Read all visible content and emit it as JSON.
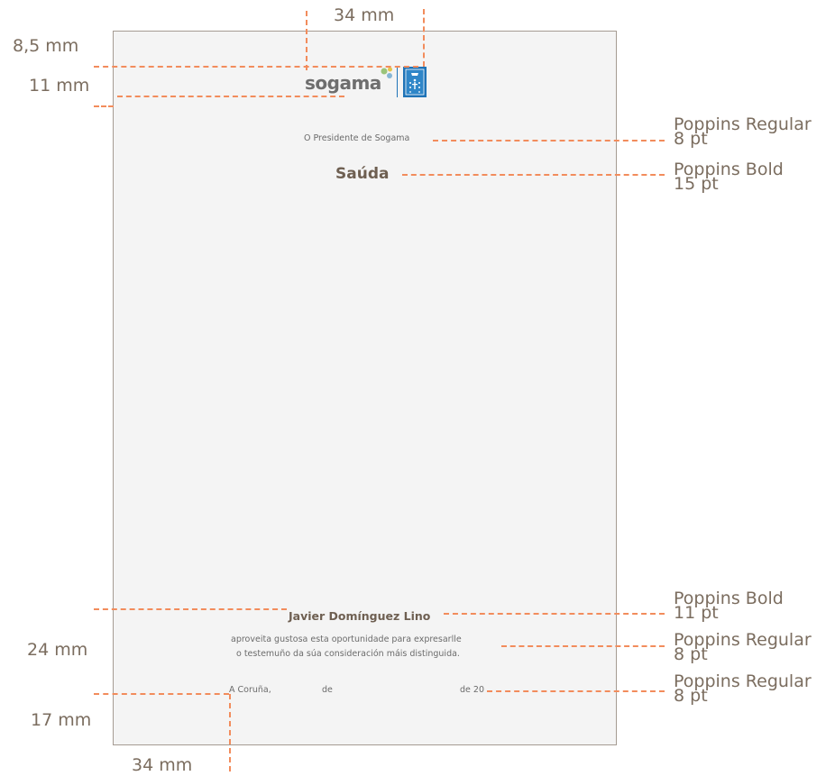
{
  "measurements": {
    "top_width": "34 mm",
    "top_margin": "8,5 mm",
    "logo_height": "11 mm",
    "bottom_block": "24 mm",
    "bottom_margin": "17 mm",
    "left_indent": "34 mm"
  },
  "document": {
    "logo_text": "sogama",
    "president_line": "O Presidente de Sogama",
    "greeting": "Saúda",
    "signer_name": "Javier Domínguez Lino",
    "body_line1": "aproveita gustosa esta oportunidade para expresarlle",
    "body_line2": "o testemuño da súa consideración máis distinguida.",
    "place": "A Coruña,",
    "date_de1": "de",
    "date_de2": "de 20"
  },
  "annotations": {
    "president_font": [
      "Poppins Regular",
      "8 pt"
    ],
    "greeting_font": [
      "Poppins Bold",
      "15 pt"
    ],
    "name_font": [
      "Poppins Bold",
      "11 pt"
    ],
    "body_font": [
      "Poppins Regular",
      "8 pt"
    ],
    "date_font": [
      "Poppins Regular",
      "8 pt"
    ]
  },
  "colors": {
    "guide": "#f28c5c",
    "text": "#7b6d5f",
    "logo_blue": "#1f73b7",
    "dot_green": "#9bc47a",
    "dot_yellow": "#e6c64d",
    "dot_blue": "#86b6d6"
  }
}
